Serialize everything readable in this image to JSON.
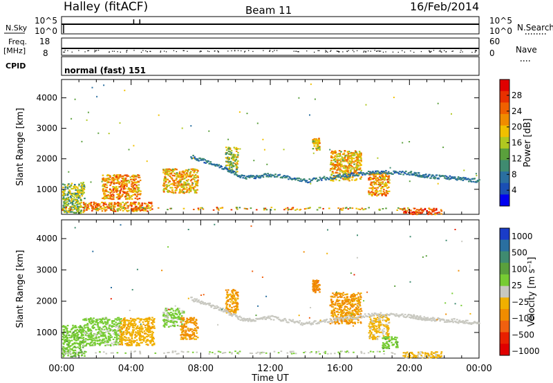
{
  "header": {
    "station": "Halley (fitACF)",
    "beam": "Beam 11",
    "date": "16/Feb/2014"
  },
  "aux_panels": {
    "nsky_label": "N.Sky",
    "nsky_ticks": [
      "10^5",
      "10^0"
    ],
    "nsearch_label": "N.Search",
    "nsearch_ticks": [
      "10^5",
      "10^0"
    ],
    "freq_label": "Freq.",
    "freq_unit": "[MHz]",
    "freq_ticks": [
      "18",
      "8"
    ],
    "nave_label": "Nave",
    "nave_ticks": [
      "60",
      "0"
    ],
    "cpid_label": "CPID",
    "cpid_text": "normal (fast) 151"
  },
  "chart_data": [
    {
      "type": "heatmap",
      "name": "power",
      "ylabel": "Slant Range [km]",
      "xlabel": "",
      "xlim": [
        0,
        24
      ],
      "ylim": [
        180,
        4600
      ],
      "yticks": [
        1000,
        2000,
        3000,
        4000
      ],
      "colorbar": {
        "label": "Power [dB]",
        "range": [
          0,
          32
        ],
        "ticks": [
          "4",
          "8",
          "12",
          "16",
          "20",
          "24",
          "28"
        ],
        "colors": [
          "#0000f0",
          "#1a4fb4",
          "#2a6fa0",
          "#3f8b70",
          "#5aa03c",
          "#b0c820",
          "#f0c000",
          "#f08c00",
          "#f06000",
          "#e83000",
          "#e00000"
        ]
      },
      "features": [
        {
          "t": [
            0.0,
            1.3
          ],
          "r": [
            250,
            1250
          ],
          "power_db": 14
        },
        {
          "t": [
            1.2,
            5.2
          ],
          "r": [
            300,
            600
          ],
          "power_db": 22
        },
        {
          "t": [
            2.3,
            4.5
          ],
          "r": [
            700,
            1500
          ],
          "power_db": 22
        },
        {
          "t": [
            5.8,
            7.8
          ],
          "r": [
            900,
            1700
          ],
          "power_db": 20
        },
        {
          "t": [
            9.4,
            10.1
          ],
          "r": [
            1600,
            2400
          ],
          "power_db": 16
        },
        {
          "t": [
            14.4,
            14.8
          ],
          "r": [
            2300,
            2700
          ],
          "power_db": 18
        },
        {
          "t": [
            15.4,
            17.2
          ],
          "r": [
            1300,
            2300
          ],
          "power_db": 20
        },
        {
          "t": [
            17.6,
            18.8
          ],
          "r": [
            800,
            1600
          ],
          "power_db": 22
        },
        {
          "t": [
            19.6,
            21.8
          ],
          "r": [
            200,
            400
          ],
          "power_db": 26
        }
      ],
      "trace": {
        "t": [
          7.4,
          9.0,
          10.5,
          12.0,
          14.0,
          16.0,
          18.0,
          20.0,
          21.0,
          22.5,
          24.0
        ],
        "r": [
          2100,
          1800,
          1400,
          1500,
          1300,
          1450,
          1600,
          1550,
          1450,
          1400,
          1300
        ],
        "power_db": 8
      }
    },
    {
      "type": "heatmap",
      "name": "velocity",
      "ylabel": "Slant Range [km]",
      "xlabel": "Time UT",
      "xlim": [
        0,
        24
      ],
      "ylim": [
        180,
        4600
      ],
      "yticks": [
        1000,
        2000,
        3000,
        4000
      ],
      "xticks": [
        "00:00",
        "04:00",
        "08:00",
        "12:00",
        "16:00",
        "20:00",
        "00:00"
      ],
      "colorbar": {
        "label": "Velocity [m s⁻¹]",
        "range": [
          -1000,
          1000
        ],
        "ticks": [
          "1000",
          "500",
          "100",
          "25",
          "−25",
          "−100",
          "−500",
          "−1000"
        ],
        "colors": [
          "#1a3cc8",
          "#2a6fa0",
          "#3f8b70",
          "#5aa03c",
          "#77cc33",
          "#c8c8c0",
          "#f0b000",
          "#f08c00",
          "#f06010",
          "#e82000",
          "#e00000"
        ]
      },
      "features": [
        {
          "t": [
            0.0,
            1.3
          ],
          "r": [
            250,
            1250
          ],
          "velocity": 200
        },
        {
          "t": [
            1.2,
            3.4
          ],
          "r": [
            600,
            1500
          ],
          "velocity": 150
        },
        {
          "t": [
            3.3,
            5.3
          ],
          "r": [
            600,
            1500
          ],
          "velocity": -200
        },
        {
          "t": [
            5.8,
            7.0
          ],
          "r": [
            1200,
            1800
          ],
          "velocity": 150
        },
        {
          "t": [
            6.8,
            7.8
          ],
          "r": [
            800,
            1500
          ],
          "velocity": -300
        },
        {
          "t": [
            9.4,
            10.1
          ],
          "r": [
            1600,
            2400
          ],
          "velocity": -300
        },
        {
          "t": [
            14.4,
            14.8
          ],
          "r": [
            2300,
            2700
          ],
          "velocity": -400
        },
        {
          "t": [
            15.4,
            17.2
          ],
          "r": [
            1300,
            2300
          ],
          "velocity": -300
        },
        {
          "t": [
            17.6,
            18.8
          ],
          "r": [
            800,
            1600
          ],
          "velocity": -150
        },
        {
          "t": [
            18.4,
            19.3
          ],
          "r": [
            500,
            900
          ],
          "velocity": 200
        },
        {
          "t": [
            19.6,
            21.8
          ],
          "r": [
            200,
            400
          ],
          "velocity": -150
        }
      ],
      "trace": {
        "t": [
          7.4,
          9.0,
          10.5,
          12.0,
          14.0,
          16.0,
          18.0,
          20.0,
          21.0,
          22.5,
          24.0
        ],
        "r": [
          2100,
          1800,
          1400,
          1500,
          1300,
          1450,
          1600,
          1550,
          1450,
          1400,
          1300
        ],
        "velocity": 0
      }
    }
  ]
}
